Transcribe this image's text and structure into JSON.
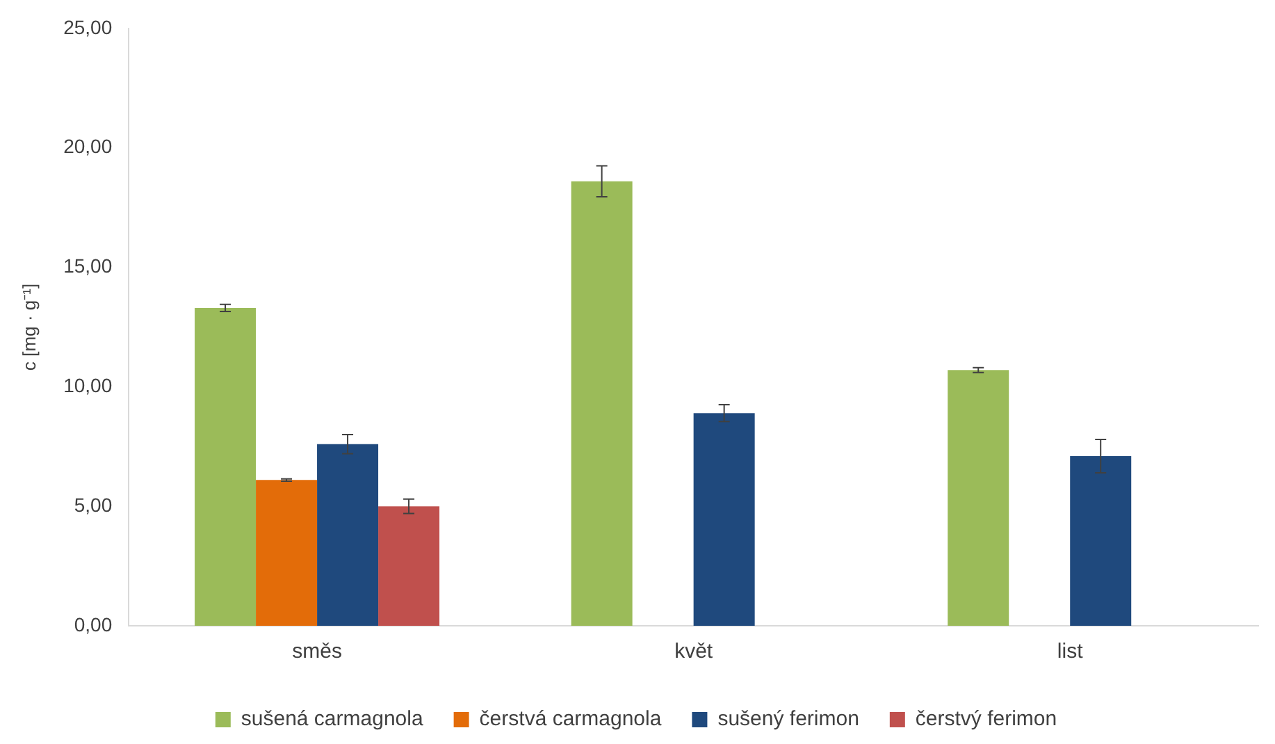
{
  "chart_data": {
    "type": "bar",
    "ylabel": "c [mg · g⁻¹]",
    "categories": [
      "směs",
      "květ",
      "list"
    ],
    "series": [
      {
        "name": "sušená carmagnola",
        "color": "#9bbb59",
        "values": [
          13.3,
          18.6,
          10.7
        ],
        "errors": [
          0.15,
          0.65,
          0.1
        ]
      },
      {
        "name": "čerstvá carmagnola",
        "color": "#e36c09",
        "values": [
          6.1,
          null,
          null
        ],
        "errors": [
          0.05,
          null,
          null
        ]
      },
      {
        "name": "sušený ferimon",
        "color": "#1f497d",
        "values": [
          7.6,
          8.9,
          7.1
        ],
        "errors": [
          0.4,
          0.35,
          0.7
        ]
      },
      {
        "name": "čerstvý ferimon",
        "color": "#c0504d",
        "values": [
          5.0,
          null,
          null
        ],
        "errors": [
          0.3,
          null,
          null
        ]
      }
    ],
    "ylim": [
      0,
      25
    ],
    "yticks": [
      {
        "value": 0,
        "label": "0,00"
      },
      {
        "value": 5,
        "label": "5,00"
      },
      {
        "value": 10,
        "label": "10,00"
      },
      {
        "value": 15,
        "label": "15,00"
      },
      {
        "value": 20,
        "label": "20,00"
      },
      {
        "value": 25,
        "label": "25,00"
      }
    ],
    "grid": false,
    "legend": "bottom"
  }
}
